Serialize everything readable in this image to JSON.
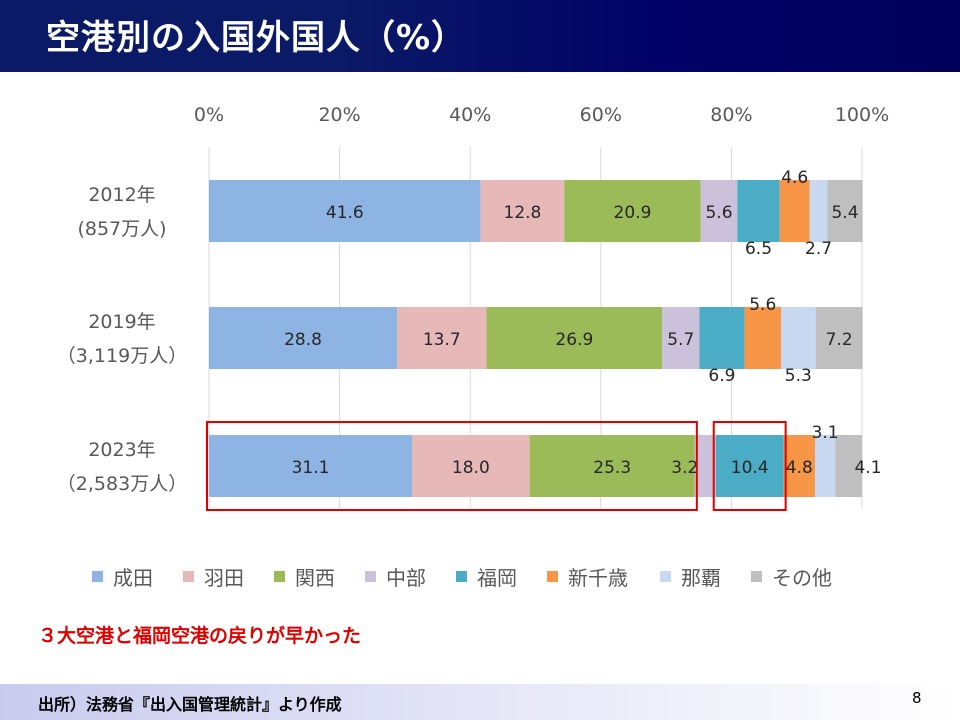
{
  "slide": {
    "title": "空港別の入国外国人（%）",
    "note": "３大空港と福岡空港の戻りが早かった",
    "source": "出所）法務省『出入国管理統計』より作成",
    "page_number": "8"
  },
  "chart_data": {
    "type": "bar",
    "orientation": "horizontal",
    "stacked": "percent",
    "x_ticks": [
      "0%",
      "20%",
      "40%",
      "60%",
      "80%",
      "100%"
    ],
    "xlim": [
      0,
      100
    ],
    "grid": true,
    "legend_position": "bottom",
    "categories": [
      {
        "year": "2012年",
        "total": "(857万人)"
      },
      {
        "year": "2019年",
        "total": "（3,119万人）"
      },
      {
        "year": "2023年",
        "total": "（2,583万人）"
      }
    ],
    "series": [
      {
        "name": "成田",
        "color": "#8eb4e3",
        "values": [
          41.6,
          28.8,
          31.1
        ]
      },
      {
        "name": "羽田",
        "color": "#e6b9b8",
        "values": [
          12.8,
          13.7,
          18.0
        ]
      },
      {
        "name": "関西",
        "color": "#9bbb59",
        "values": [
          20.9,
          26.9,
          25.3
        ]
      },
      {
        "name": "中部",
        "color": "#ccc1da",
        "values": [
          5.6,
          5.7,
          3.2
        ]
      },
      {
        "name": "福岡",
        "color": "#4bacc6",
        "values": [
          6.5,
          6.9,
          10.4
        ]
      },
      {
        "name": "新千歳",
        "color": "#f79646",
        "values": [
          4.6,
          5.6,
          4.8
        ]
      },
      {
        "name": "那覇",
        "color": "#c6d9f1",
        "values": [
          2.7,
          5.3,
          3.1
        ]
      },
      {
        "name": "その他",
        "color": "#bfbfbf",
        "values": [
          5.4,
          7.2,
          4.1
        ]
      }
    ],
    "data_labels": [
      [
        "41.6",
        "12.8",
        "20.9",
        "5.6",
        "6.5",
        "4.6",
        "2.7",
        "5.4"
      ],
      [
        "28.8",
        "13.7",
        "26.9",
        "5.7",
        "6.9",
        "5.6",
        "5.3",
        "7.2"
      ],
      [
        "31.1",
        "18.0",
        "25.3",
        "3.2",
        "10.4",
        "4.8",
        "3.1",
        "4.1"
      ]
    ],
    "highlights": [
      {
        "category_index": 2,
        "series": [
          "成田",
          "羽田",
          "関西"
        ],
        "color": "#e00000"
      },
      {
        "category_index": 2,
        "series": [
          "福岡"
        ],
        "color": "#e00000"
      }
    ]
  }
}
